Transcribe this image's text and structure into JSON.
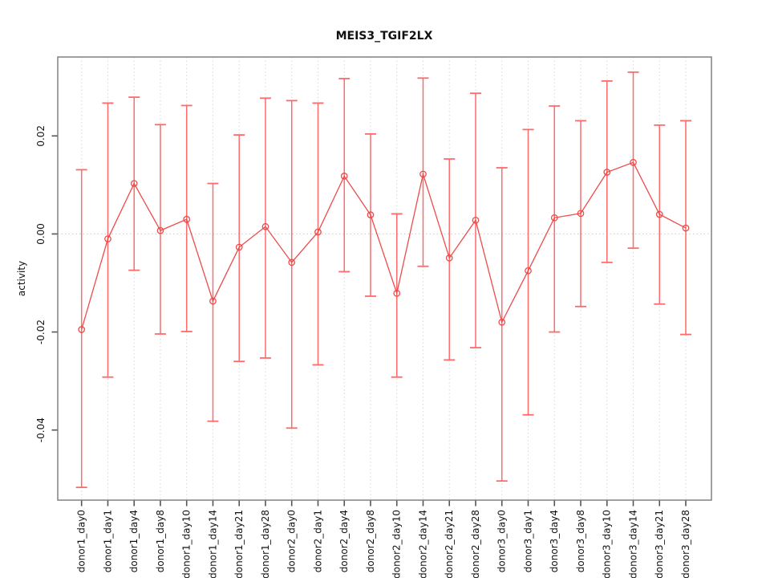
{
  "title": "MEIS3_TGIF2LX",
  "chart_data": {
    "type": "line",
    "subtype": "points-with-error-bars",
    "title": "MEIS3_TGIF2LX",
    "xlabel": "",
    "ylabel": "activity",
    "categories": [
      "donor1_day0",
      "donor1_day1",
      "donor1_day4",
      "donor1_day8",
      "donor1_day10",
      "donor1_day14",
      "donor1_day21",
      "donor1_day28",
      "donor2_day0",
      "donor2_day1",
      "donor2_day4",
      "donor2_day8",
      "donor2_day10",
      "donor2_day14",
      "donor2_day21",
      "donor2_day28",
      "donor3_day0",
      "donor3_day1",
      "donor3_day4",
      "donor3_day8",
      "donor3_day10",
      "donor3_day14",
      "donor3_day21",
      "donor3_day28"
    ],
    "series": [
      {
        "name": "activity",
        "values": [
          -0.0195,
          -0.001,
          0.0103,
          0.0007,
          0.003,
          -0.0137,
          -0.0027,
          0.0015,
          -0.0058,
          0.0004,
          0.0118,
          0.0039,
          -0.0121,
          0.0122,
          -0.0049,
          0.0028,
          -0.018,
          -0.0075,
          0.0033,
          0.0042,
          0.0126,
          0.0146,
          0.004,
          0.0012
        ],
        "error_high": [
          0.0131,
          0.0267,
          0.0279,
          0.0223,
          0.0262,
          0.0103,
          0.0202,
          0.0277,
          0.0272,
          0.0267,
          0.0317,
          0.0204,
          0.0041,
          0.0318,
          0.0153,
          0.0287,
          0.0135,
          0.0213,
          0.0261,
          0.0231,
          0.0312,
          0.033,
          0.0222,
          0.0231
        ],
        "error_low": [
          -0.0517,
          -0.0292,
          -0.0074,
          -0.0204,
          -0.0199,
          -0.0382,
          -0.026,
          -0.0253,
          -0.0396,
          -0.0267,
          -0.0077,
          -0.0127,
          -0.0292,
          -0.0066,
          -0.0257,
          -0.0232,
          -0.0504,
          -0.0369,
          -0.02,
          -0.0148,
          -0.0058,
          -0.0029,
          -0.0143,
          -0.0205
        ]
      }
    ],
    "ylim": [
      -0.0543,
      0.0361
    ],
    "y_ticks": [
      0.02,
      0.0,
      -0.02,
      -0.04
    ],
    "y_tick_labels": [
      "0.02",
      "0.00",
      "-0.02",
      "-0.04"
    ],
    "grid": {
      "vertical": "dotted",
      "horizontal_zero_line": "dotted"
    },
    "legend": "none",
    "point_style": "open-circle",
    "colors": {
      "series": "#ee4b4b",
      "error_bar": "#ff6a6a",
      "grid": "#dadada",
      "zero_line": "#cfcfcf",
      "box": "#787878",
      "tick": "#555555",
      "text": "#111111"
    }
  }
}
